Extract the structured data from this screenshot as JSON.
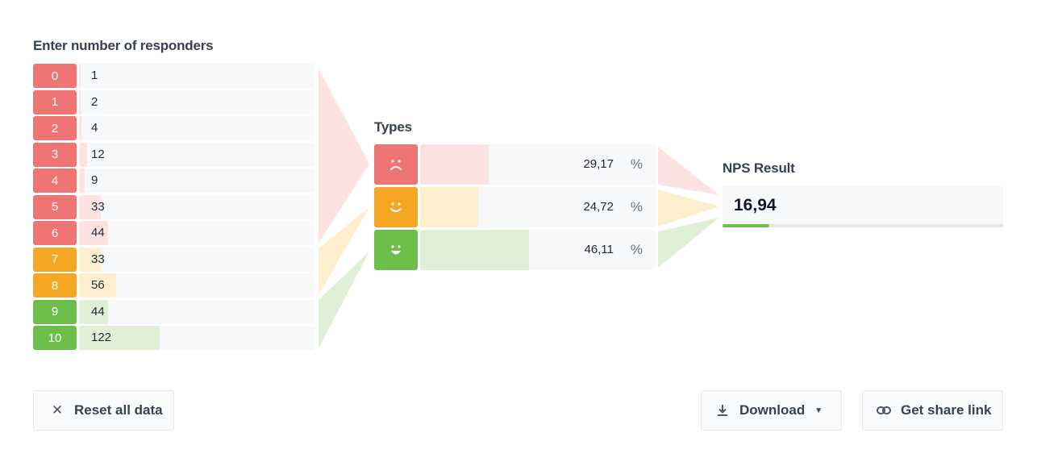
{
  "headings": {
    "responders": "Enter number of responders",
    "types": "Types",
    "nps": "NPS Result"
  },
  "responders": [
    {
      "score": "0",
      "count": "1",
      "value": 1
    },
    {
      "score": "1",
      "count": "2",
      "value": 2
    },
    {
      "score": "2",
      "count": "4",
      "value": 4
    },
    {
      "score": "3",
      "count": "12",
      "value": 12
    },
    {
      "score": "4",
      "count": "9",
      "value": 9
    },
    {
      "score": "5",
      "count": "33",
      "value": 33
    },
    {
      "score": "6",
      "count": "44",
      "value": 44
    },
    {
      "score": "7",
      "count": "33",
      "value": 33
    },
    {
      "score": "8",
      "count": "56",
      "value": 56
    },
    {
      "score": "9",
      "count": "44",
      "value": 44
    },
    {
      "score": "10",
      "count": "122",
      "value": 122
    }
  ],
  "types": [
    {
      "icon": "sad-face-icon",
      "percent_text": "29,17",
      "percent": 29.17,
      "unit": "%"
    },
    {
      "icon": "neutral-face-icon",
      "percent_text": "24,72",
      "percent": 24.72,
      "unit": "%"
    },
    {
      "icon": "happy-face-icon",
      "percent_text": "46,11",
      "percent": 46.11,
      "unit": "%"
    }
  ],
  "nps": {
    "value_text": "16,94",
    "value": 16.94
  },
  "buttons": {
    "reset": "Reset all data",
    "download": "Download",
    "share": "Get share link"
  },
  "colors": {
    "detractor": "#ef7575",
    "passive": "#f5a623",
    "promoter": "#6cbf4b",
    "detractor_light": "#fde2e2",
    "passive_light": "#fdefcd",
    "promoter_light": "#dff0d6"
  }
}
